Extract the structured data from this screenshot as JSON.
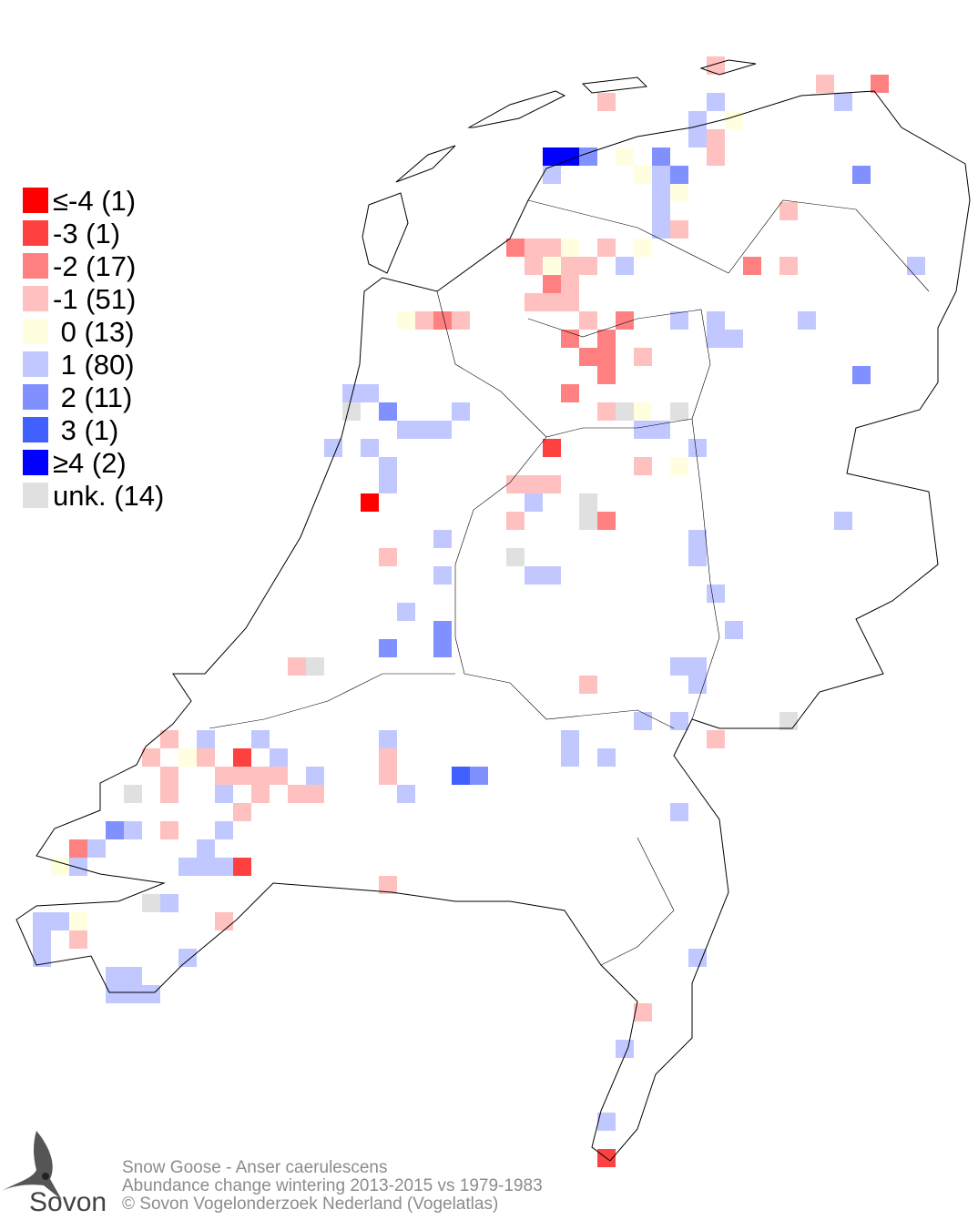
{
  "legend": {
    "items": [
      {
        "label": "≤-4 (1)",
        "color": "#ff0000"
      },
      {
        "label": "-3 (1)",
        "color": "#ff4040"
      },
      {
        "label": "-2 (17)",
        "color": "#ff8080"
      },
      {
        "label": "-1 (51)",
        "color": "#ffc0c0"
      },
      {
        "label": " 0 (13)",
        "color": "#ffffe0"
      },
      {
        "label": " 1 (80)",
        "color": "#c0c8ff"
      },
      {
        "label": " 2 (11)",
        "color": "#8090ff"
      },
      {
        "label": " 3 (1)",
        "color": "#4060ff"
      },
      {
        "label": "≥4 (2)",
        "color": "#0000ff"
      },
      {
        "label": "unk. (14)",
        "color": "#e0e0e0"
      }
    ]
  },
  "caption": {
    "species": "Snow Goose - Anser caerulescens",
    "subtitle": "Abundance change wintering  2013-2015 vs 1979-1983",
    "copyright": "© Sovon Vogelonderzoek Nederland (Vogelatlas)"
  },
  "logo": {
    "text": "Sovon"
  }
}
